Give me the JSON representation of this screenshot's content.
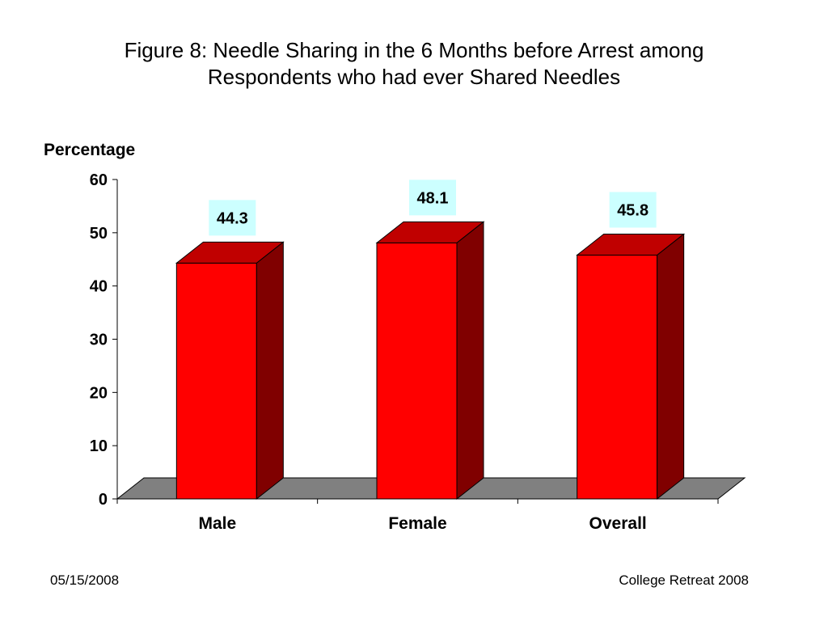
{
  "slide": {
    "title_line1": "Figure 8: Needle Sharing in the 6 Months before Arrest among",
    "title_line2": "Respondents who had ever Shared Needles",
    "footer_date": "05/15/2008",
    "footer_event": "College Retreat 2008"
  },
  "chart_data": {
    "type": "bar",
    "title": "Figure 8: Needle Sharing in the 6 Months before Arrest among Respondents who had ever Shared Needles",
    "ylabel": "Percentage",
    "xlabel": "",
    "categories": [
      "Male",
      "Female",
      "Overall"
    ],
    "values": [
      44.3,
      48.1,
      45.8
    ],
    "data_labels": [
      "44.3",
      "48.1",
      "45.8"
    ],
    "ylim": [
      0,
      60
    ],
    "yticks": [
      0,
      10,
      20,
      30,
      40,
      50,
      60
    ],
    "grid": false,
    "legend": "none",
    "style": "3d",
    "colors": {
      "bar_front": "#ff0000",
      "bar_top": "#c00000",
      "bar_side": "#800000",
      "floor": "#808080",
      "label_bg": "#ccffff"
    }
  }
}
